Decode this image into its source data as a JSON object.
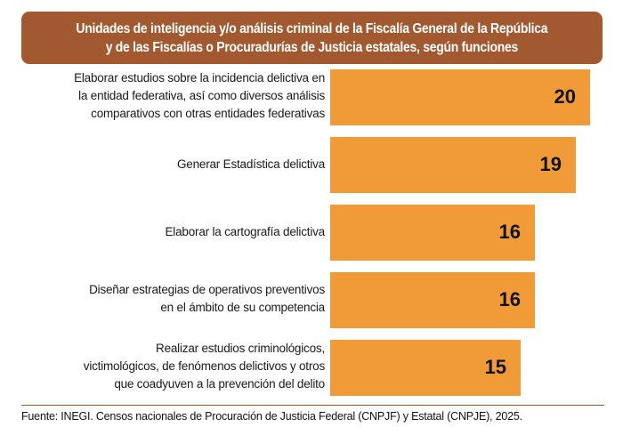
{
  "chart_data": {
    "type": "bar",
    "orientation": "horizontal",
    "title": "Unidades de inteligencia y/o análisis criminal de la Fiscalía General de la República y de las Fiscalías o Procuradurías de Justicia estatales, según funciones",
    "title_lines": [
      "Unidades de inteligencia y/o análisis criminal de la Fiscalía General de la República",
      "y de las Fiscalías o Procuradurías de Justicia estatales, según funciones"
    ],
    "categories": [
      "Elaborar estudios sobre la incidencia delictiva en la entidad federativa, así como diversos análisis comparativos con otras entidades federativas",
      "Generar Estadística delictiva",
      "Elaborar la cartografía delictiva",
      "Diseñar estrategias de operativos preventivos en el ámbito de su competencia",
      "Realizar estudios criminológicos, victimológicos, de fenómenos delictivos y otros que coadyuven a la prevención del delito"
    ],
    "category_lines": [
      [
        "Elaborar estudios sobre la incidencia delictiva en",
        "la entidad federativa, así como diversos análisis",
        "comparativos con otras entidades federativas"
      ],
      [
        "Generar Estadística delictiva"
      ],
      [
        "Elaborar la cartografía delictiva"
      ],
      [
        "Diseñar estrategias de operativos preventivos",
        "en el ámbito de su competencia"
      ],
      [
        "Realizar estudios criminológicos,",
        "victimológicos, de fenómenos delictivos y otros",
        "que coadyuven a la prevención del delito"
      ]
    ],
    "values": [
      20,
      19,
      16,
      16,
      15
    ],
    "data_labels": [
      "20",
      "19",
      "16",
      "16",
      "15"
    ],
    "xlabel": "",
    "ylabel": "",
    "xlim": [
      0,
      20
    ],
    "grid": false,
    "legend": "none",
    "colors": {
      "bar": "#F19B38",
      "title_bg": "#A3592F",
      "title_text": "#FFFFFF",
      "divider": "#A3592F"
    }
  },
  "footer": {
    "source": "Fuente: INEGI. Censos nacionales de Procuración de Justicia Federal (CNPJF) y Estatal (CNPJE), 2025."
  }
}
